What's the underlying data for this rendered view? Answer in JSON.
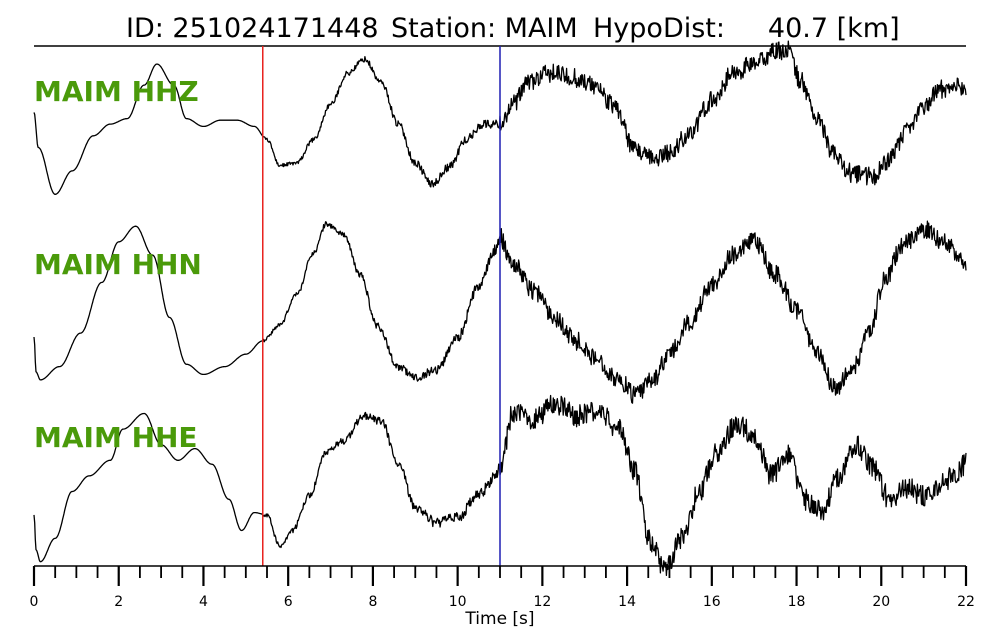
{
  "header": {
    "event_id": "ID: 251024171448",
    "station": "Station: MAIM",
    "hypodist": "HypoDist:     40.7 [km]"
  },
  "colors": {
    "channel_label": "#4a9a0a",
    "p_pick": "#e8211d",
    "s_pick": "#1f1fb4",
    "trace": "#000000"
  },
  "chart_data": {
    "type": "line",
    "title": "ID: 251024171448   Station: MAIM   HypoDist:     40.7 [km]",
    "xlabel": "Time [s]",
    "ylabel": "",
    "xlim": [
      0,
      22
    ],
    "x_ticks": [
      0,
      2,
      4,
      6,
      8,
      10,
      12,
      14,
      16,
      18,
      20,
      22
    ],
    "x_ticks_minor_step": 0.5,
    "grid": false,
    "legend": "none",
    "picks": [
      {
        "phase": "P",
        "time": 5.4,
        "color": "#e8211d"
      },
      {
        "phase": "S",
        "time": 11.0,
        "color": "#1f1fb4"
      }
    ],
    "series": [
      {
        "name": "MAIM HHZ",
        "noise_start": 5.4,
        "noise_level": [
          0.02,
          0.06,
          0.12
        ],
        "x": [
          0,
          0.1,
          0.5,
          0.9,
          1.4,
          1.8,
          2.2,
          2.6,
          2.9,
          3.3,
          3.6,
          4.0,
          4.4,
          4.8,
          5.2,
          5.5,
          5.8,
          6.2,
          6.6,
          7.0,
          7.4,
          7.8,
          8.2,
          8.6,
          9.0,
          9.4,
          9.8,
          10.2,
          10.6,
          11.0,
          11.3,
          11.7,
          12.2,
          12.7,
          13.2,
          13.7,
          14.2,
          14.6,
          15.0,
          15.5,
          16.0,
          16.5,
          17.0,
          17.5,
          17.8,
          18.1,
          18.5,
          18.9,
          19.3,
          19.8,
          20.2,
          20.6,
          21.0,
          21.4,
          21.8,
          22.0
        ],
        "y": [
          0.2,
          -0.25,
          -0.85,
          -0.55,
          -0.1,
          0.05,
          0.12,
          0.55,
          0.82,
          0.55,
          0.12,
          0.02,
          0.1,
          0.1,
          0.02,
          -0.15,
          -0.48,
          -0.45,
          -0.15,
          0.3,
          0.7,
          0.88,
          0.58,
          0.05,
          -0.45,
          -0.72,
          -0.5,
          -0.15,
          0.05,
          0.05,
          0.3,
          0.6,
          0.7,
          0.65,
          0.55,
          0.28,
          -0.3,
          -0.4,
          -0.32,
          -0.05,
          0.35,
          0.7,
          0.82,
          0.98,
          1.0,
          0.6,
          0.1,
          -0.35,
          -0.58,
          -0.62,
          -0.4,
          -0.05,
          0.28,
          0.5,
          0.55,
          0.48
        ]
      },
      {
        "name": "MAIM HHN",
        "noise_start": 5.4,
        "noise_level": [
          0.02,
          0.07,
          0.12
        ],
        "x": [
          0,
          0.05,
          0.15,
          0.6,
          1.1,
          1.6,
          2.0,
          2.4,
          2.8,
          3.2,
          3.6,
          4.0,
          4.5,
          5.0,
          5.4,
          5.8,
          6.2,
          6.6,
          6.9,
          7.3,
          7.7,
          8.1,
          8.6,
          9.0,
          9.5,
          10.0,
          10.5,
          10.9,
          11.0,
          11.3,
          11.8,
          12.3,
          12.8,
          13.3,
          13.8,
          14.2,
          14.6,
          15.0,
          15.5,
          16.0,
          16.5,
          17.0,
          17.5,
          18.0,
          18.5,
          18.9,
          19.3,
          19.7,
          20.1,
          20.5,
          21.0,
          21.5,
          22.0
        ],
        "y": [
          -0.5,
          -0.95,
          -1.05,
          -0.88,
          -0.45,
          0.2,
          0.72,
          0.92,
          0.55,
          -0.25,
          -0.85,
          -0.98,
          -0.88,
          -0.72,
          -0.55,
          -0.35,
          0.05,
          0.58,
          0.95,
          0.82,
          0.3,
          -0.35,
          -0.88,
          -1.02,
          -0.92,
          -0.5,
          0.15,
          0.62,
          0.78,
          0.45,
          0.1,
          -0.25,
          -0.55,
          -0.8,
          -1.05,
          -1.25,
          -1.05,
          -0.72,
          -0.3,
          0.18,
          0.55,
          0.72,
          0.3,
          -0.15,
          -0.72,
          -1.15,
          -0.95,
          -0.45,
          0.25,
          0.68,
          0.88,
          0.72,
          0.45
        ]
      },
      {
        "name": "MAIM HHE",
        "noise_start": 5.4,
        "noise_level": [
          0.025,
          0.08,
          0.14
        ],
        "x": [
          0,
          0.05,
          0.15,
          0.5,
          0.9,
          1.3,
          1.8,
          2.1,
          2.6,
          3.0,
          3.4,
          3.8,
          4.2,
          4.6,
          4.9,
          5.2,
          5.5,
          5.8,
          6.1,
          6.5,
          6.9,
          7.3,
          7.8,
          8.2,
          8.6,
          9.0,
          9.5,
          10.0,
          10.5,
          10.9,
          11.0,
          11.3,
          11.8,
          12.3,
          12.8,
          13.3,
          13.8,
          14.2,
          14.5,
          14.9,
          15.3,
          15.7,
          16.1,
          16.6,
          17.0,
          17.4,
          17.8,
          18.2,
          18.6,
          19.0,
          19.4,
          19.8,
          20.2,
          20.6,
          21.0,
          21.4,
          21.8,
          22.0
        ],
        "y": [
          -0.55,
          -1.0,
          -1.15,
          -0.85,
          -0.25,
          -0.05,
          0.15,
          0.55,
          0.75,
          0.35,
          0.15,
          0.3,
          0.1,
          -0.35,
          -0.75,
          -0.52,
          -0.55,
          -0.95,
          -0.75,
          -0.3,
          0.25,
          0.4,
          0.72,
          0.65,
          0.1,
          -0.45,
          -0.65,
          -0.58,
          -0.3,
          -0.05,
          0.05,
          0.75,
          0.68,
          0.88,
          0.72,
          0.78,
          0.55,
          0.0,
          -0.85,
          -1.25,
          -0.85,
          -0.25,
          0.25,
          0.62,
          0.48,
          -0.05,
          0.22,
          -0.35,
          -0.5,
          -0.05,
          0.35,
          0.05,
          -0.35,
          -0.2,
          -0.3,
          -0.15,
          0.0,
          0.12
        ]
      }
    ]
  }
}
